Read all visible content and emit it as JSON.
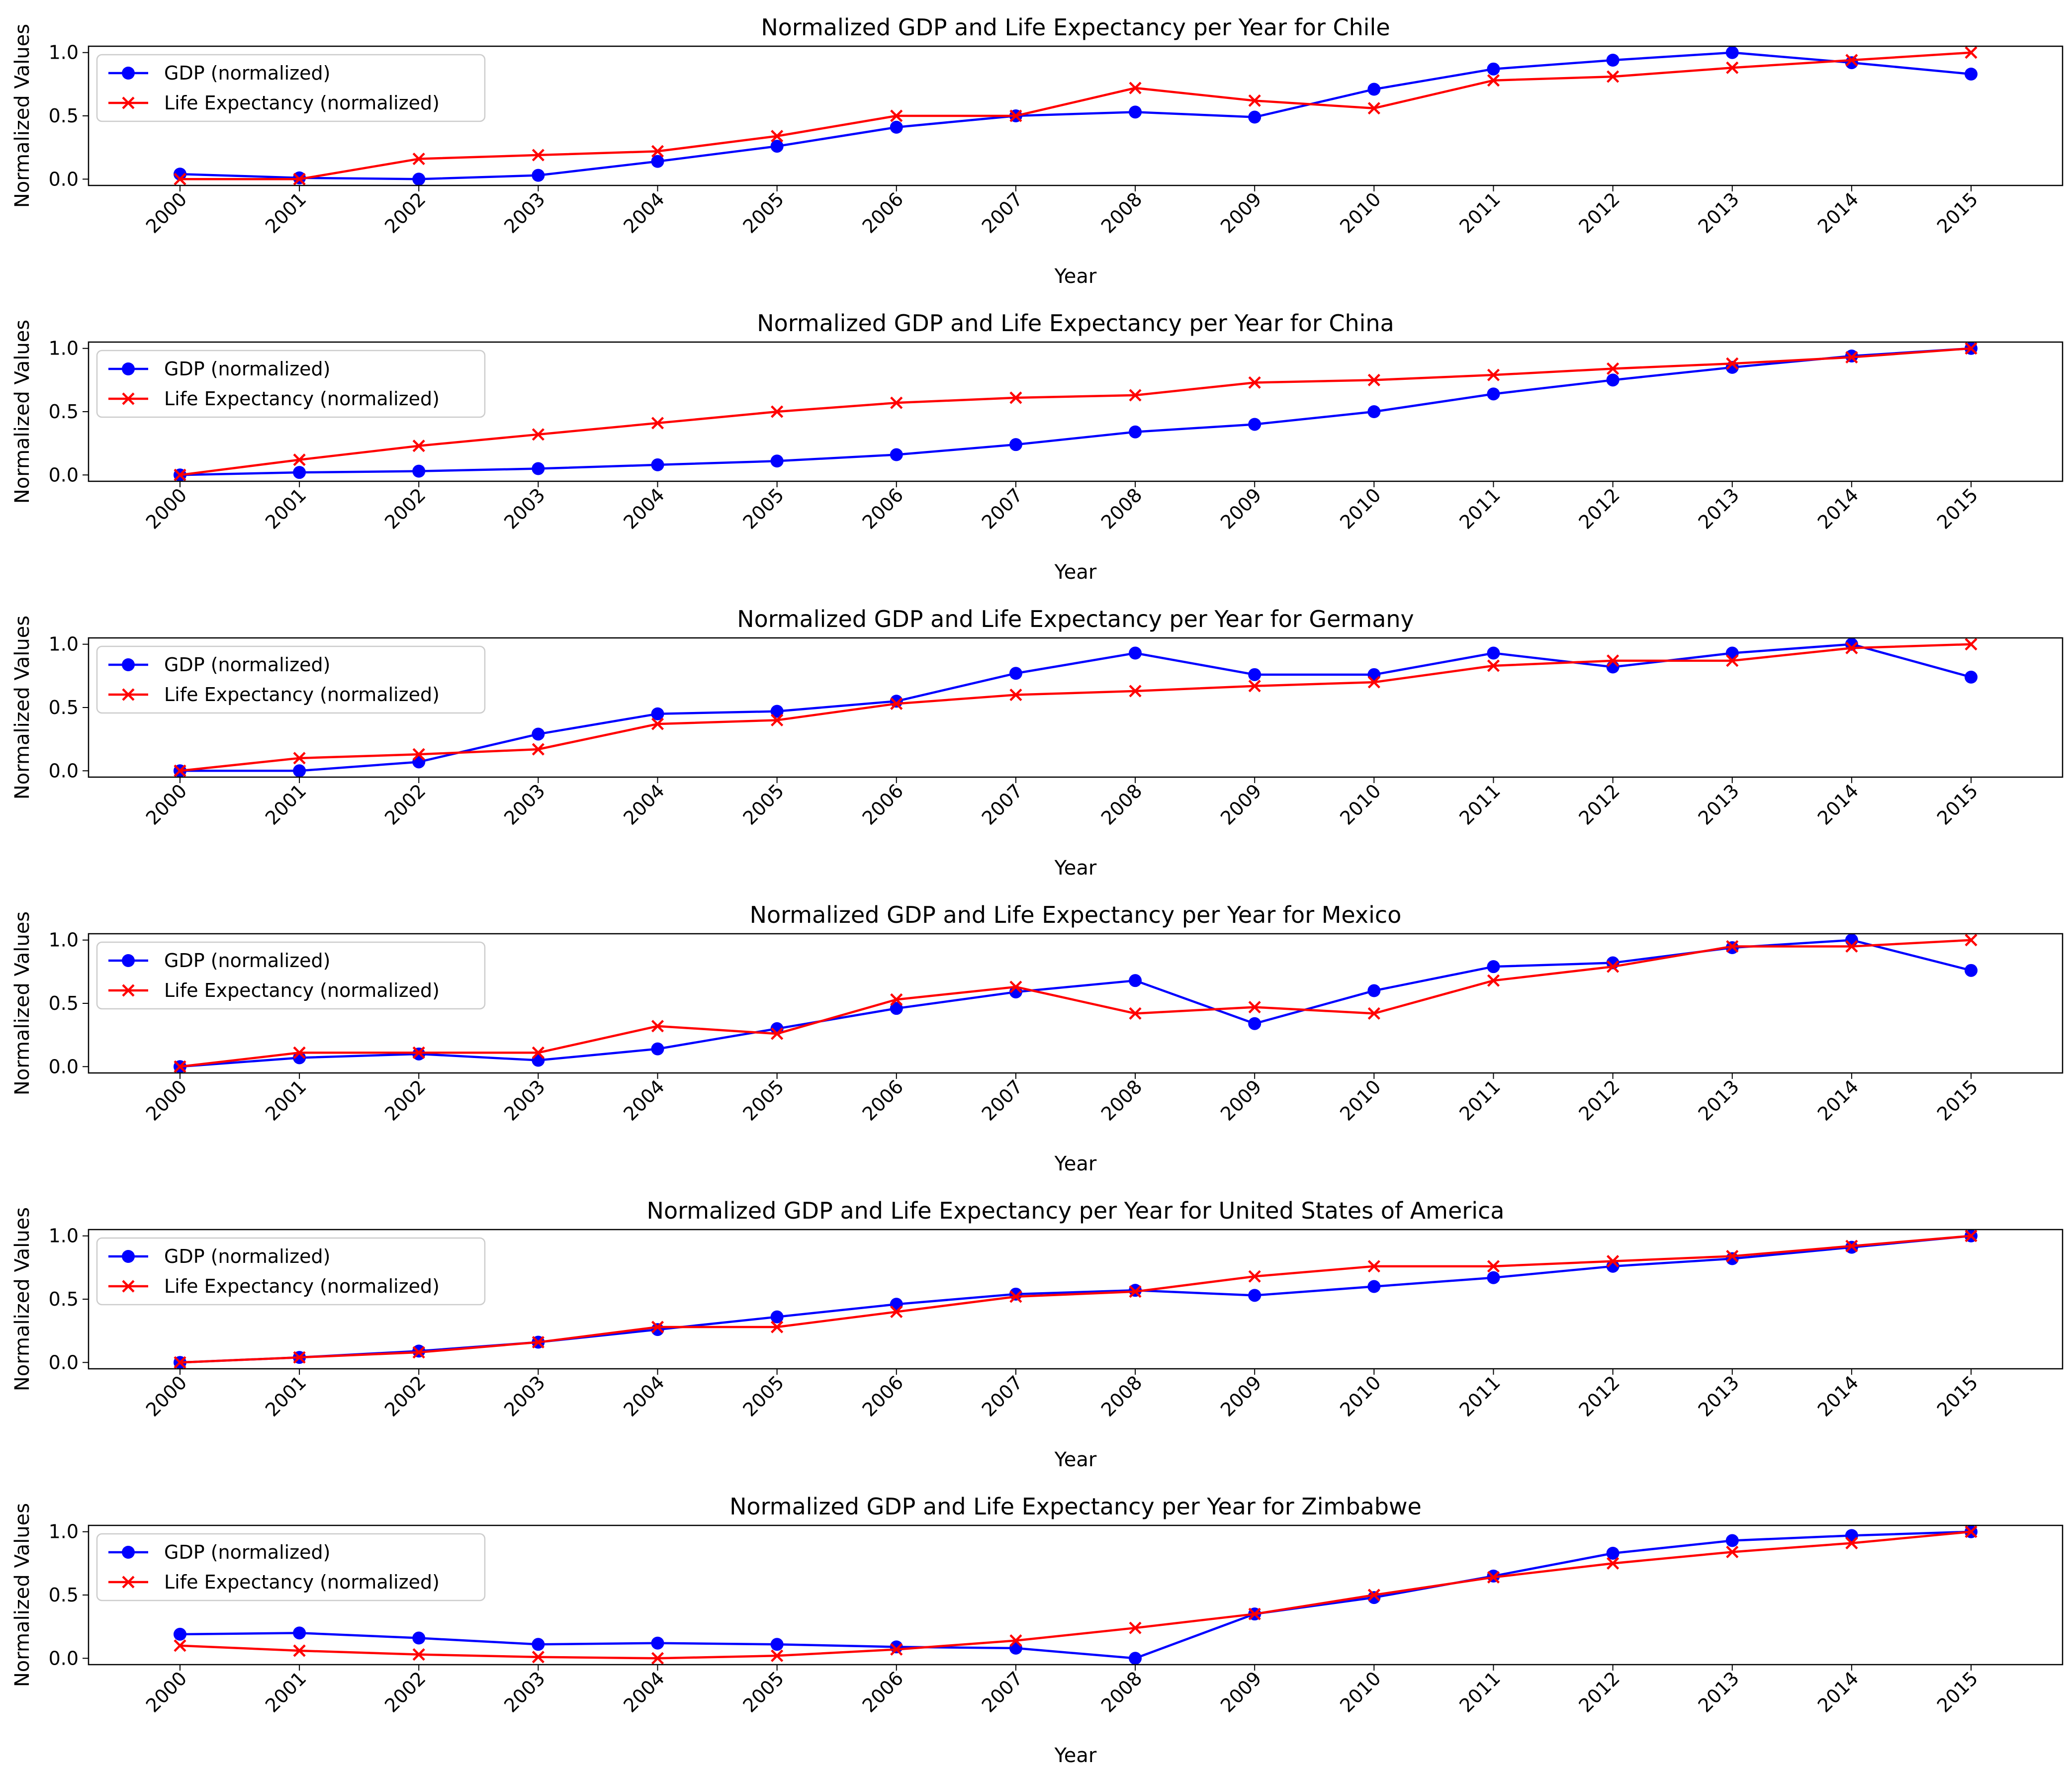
{
  "chart_data": [
    {
      "type": "line",
      "title": "Normalized GDP and Life Expectancy per Year for Chile",
      "xlabel": "Year",
      "ylabel": "Normalized Values",
      "x": [
        2000,
        2001,
        2002,
        2003,
        2004,
        2005,
        2006,
        2007,
        2008,
        2009,
        2010,
        2011,
        2012,
        2013,
        2014,
        2015
      ],
      "ylim": [
        -0.05,
        1.05
      ],
      "yticks": [
        "0.0",
        "0.5",
        "1.0"
      ],
      "grid": false,
      "legend": "upper left",
      "series": [
        {
          "name": "GDP (normalized)",
          "color": "#0000ff",
          "marker": "circle",
          "values": [
            0.04,
            0.01,
            0.0,
            0.03,
            0.14,
            0.26,
            0.41,
            0.5,
            0.53,
            0.49,
            0.71,
            0.87,
            0.94,
            1.0,
            0.92,
            0.83
          ]
        },
        {
          "name": "Life Expectancy (normalized)",
          "color": "#ff0000",
          "marker": "x",
          "values": [
            0.0,
            0.0,
            0.16,
            0.19,
            0.22,
            0.34,
            0.5,
            0.5,
            0.72,
            0.62,
            0.56,
            0.78,
            0.81,
            0.88,
            0.94,
            1.0
          ]
        }
      ]
    },
    {
      "type": "line",
      "title": "Normalized GDP and Life Expectancy per Year for China",
      "xlabel": "Year",
      "ylabel": "Normalized Values",
      "x": [
        2000,
        2001,
        2002,
        2003,
        2004,
        2005,
        2006,
        2007,
        2008,
        2009,
        2010,
        2011,
        2012,
        2013,
        2014,
        2015
      ],
      "ylim": [
        -0.05,
        1.05
      ],
      "yticks": [
        "0.0",
        "0.5",
        "1.0"
      ],
      "grid": false,
      "legend": "upper left",
      "series": [
        {
          "name": "GDP (normalized)",
          "color": "#0000ff",
          "marker": "circle",
          "values": [
            0.0,
            0.02,
            0.03,
            0.05,
            0.08,
            0.11,
            0.16,
            0.24,
            0.34,
            0.4,
            0.5,
            0.64,
            0.75,
            0.85,
            0.94,
            1.0
          ]
        },
        {
          "name": "Life Expectancy (normalized)",
          "color": "#ff0000",
          "marker": "x",
          "values": [
            0.0,
            0.12,
            0.23,
            0.32,
            0.41,
            0.5,
            0.57,
            0.61,
            0.63,
            0.73,
            0.75,
            0.79,
            0.84,
            0.88,
            0.93,
            1.0
          ]
        }
      ]
    },
    {
      "type": "line",
      "title": "Normalized GDP and Life Expectancy per Year for Germany",
      "xlabel": "Year",
      "ylabel": "Normalized Values",
      "x": [
        2000,
        2001,
        2002,
        2003,
        2004,
        2005,
        2006,
        2007,
        2008,
        2009,
        2010,
        2011,
        2012,
        2013,
        2014,
        2015
      ],
      "ylim": [
        -0.05,
        1.05
      ],
      "yticks": [
        "0.0",
        "0.5",
        "1.0"
      ],
      "grid": false,
      "legend": "upper left",
      "series": [
        {
          "name": "GDP (normalized)",
          "color": "#0000ff",
          "marker": "circle",
          "values": [
            0.0,
            0.0,
            0.07,
            0.29,
            0.45,
            0.47,
            0.55,
            0.77,
            0.93,
            0.76,
            0.76,
            0.93,
            0.82,
            0.93,
            1.0,
            0.74
          ]
        },
        {
          "name": "Life Expectancy (normalized)",
          "color": "#ff0000",
          "marker": "x",
          "values": [
            0.0,
            0.1,
            0.13,
            0.17,
            0.37,
            0.4,
            0.53,
            0.6,
            0.63,
            0.67,
            0.7,
            0.83,
            0.87,
            0.87,
            0.97,
            1.0
          ]
        }
      ]
    },
    {
      "type": "line",
      "title": "Normalized GDP and Life Expectancy per Year for Mexico",
      "xlabel": "Year",
      "ylabel": "Normalized Values",
      "x": [
        2000,
        2001,
        2002,
        2003,
        2004,
        2005,
        2006,
        2007,
        2008,
        2009,
        2010,
        2011,
        2012,
        2013,
        2014,
        2015
      ],
      "ylim": [
        -0.05,
        1.05
      ],
      "yticks": [
        "0.0",
        "0.5",
        "1.0"
      ],
      "grid": false,
      "legend": "upper left",
      "series": [
        {
          "name": "GDP (normalized)",
          "color": "#0000ff",
          "marker": "circle",
          "values": [
            0.0,
            0.07,
            0.1,
            0.05,
            0.14,
            0.3,
            0.46,
            0.59,
            0.68,
            0.34,
            0.6,
            0.79,
            0.82,
            0.94,
            1.0,
            0.76
          ]
        },
        {
          "name": "Life Expectancy (normalized)",
          "color": "#ff0000",
          "marker": "x",
          "values": [
            0.0,
            0.11,
            0.11,
            0.11,
            0.32,
            0.26,
            0.53,
            0.63,
            0.42,
            0.47,
            0.42,
            0.68,
            0.79,
            0.95,
            0.95,
            1.0
          ]
        }
      ]
    },
    {
      "type": "line",
      "title": "Normalized GDP and Life Expectancy per Year for United States of America",
      "xlabel": "Year",
      "ylabel": "Normalized Values",
      "x": [
        2000,
        2001,
        2002,
        2003,
        2004,
        2005,
        2006,
        2007,
        2008,
        2009,
        2010,
        2011,
        2012,
        2013,
        2014,
        2015
      ],
      "ylim": [
        -0.05,
        1.05
      ],
      "yticks": [
        "0.0",
        "0.5",
        "1.0"
      ],
      "grid": false,
      "legend": "upper left",
      "series": [
        {
          "name": "GDP (normalized)",
          "color": "#0000ff",
          "marker": "circle",
          "values": [
            0.0,
            0.04,
            0.09,
            0.16,
            0.26,
            0.36,
            0.46,
            0.54,
            0.57,
            0.53,
            0.6,
            0.67,
            0.76,
            0.82,
            0.91,
            1.0
          ]
        },
        {
          "name": "Life Expectancy (normalized)",
          "color": "#ff0000",
          "marker": "x",
          "values": [
            0.0,
            0.04,
            0.08,
            0.16,
            0.28,
            0.28,
            0.4,
            0.52,
            0.56,
            0.68,
            0.76,
            0.76,
            0.8,
            0.84,
            0.92,
            1.0
          ]
        }
      ]
    },
    {
      "type": "line",
      "title": "Normalized GDP and Life Expectancy per Year for Zimbabwe",
      "xlabel": "Year",
      "ylabel": "Normalized Values",
      "x": [
        2000,
        2001,
        2002,
        2003,
        2004,
        2005,
        2006,
        2007,
        2008,
        2009,
        2010,
        2011,
        2012,
        2013,
        2014,
        2015
      ],
      "ylim": [
        -0.05,
        1.05
      ],
      "yticks": [
        "0.0",
        "0.5",
        "1.0"
      ],
      "grid": false,
      "legend": "upper left",
      "series": [
        {
          "name": "GDP (normalized)",
          "color": "#0000ff",
          "marker": "circle",
          "values": [
            0.19,
            0.2,
            0.16,
            0.11,
            0.12,
            0.11,
            0.09,
            0.08,
            0.0,
            0.35,
            0.48,
            0.65,
            0.83,
            0.93,
            0.97,
            1.0
          ]
        },
        {
          "name": "Life Expectancy (normalized)",
          "color": "#ff0000",
          "marker": "x",
          "values": [
            0.1,
            0.06,
            0.03,
            0.01,
            0.0,
            0.02,
            0.07,
            0.14,
            0.24,
            0.35,
            0.5,
            0.64,
            0.75,
            0.84,
            0.91,
            1.0
          ]
        }
      ]
    }
  ]
}
